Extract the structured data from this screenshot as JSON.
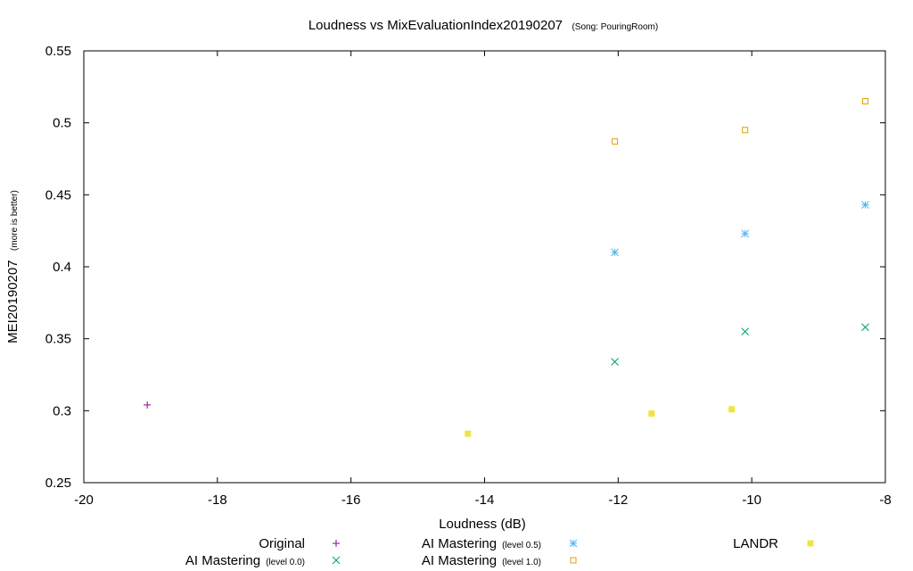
{
  "chart_data": {
    "type": "scatter",
    "title": "Loudness vs MixEvaluationIndex20190207",
    "subtitle": "(Song: PouringRoom)",
    "xlabel": "Loudness (dB)",
    "ylabel": "MEI20190207",
    "ylabel_note": "(more is better)",
    "xlim": [
      -20,
      -8
    ],
    "ylim": [
      0.25,
      0.55
    ],
    "xticks": [
      -20,
      -18,
      -16,
      -14,
      -12,
      -10,
      -8
    ],
    "yticks": [
      0.25,
      0.3,
      0.35,
      0.4,
      0.45,
      0.5,
      0.55
    ],
    "grid": false,
    "legend_position": "bottom",
    "series": [
      {
        "name": "Original",
        "name_note": "",
        "marker": "plus",
        "color": "#94008c",
        "points": [
          {
            "x": -19.05,
            "y": 0.304
          }
        ]
      },
      {
        "name": "AI Mastering",
        "name_note": "(level 0.0)",
        "marker": "cross",
        "color": "#009e73",
        "points": [
          {
            "x": -12.05,
            "y": 0.334
          },
          {
            "x": -10.1,
            "y": 0.355
          },
          {
            "x": -8.3,
            "y": 0.358
          }
        ]
      },
      {
        "name": "AI Mastering",
        "name_note": "(level 0.5)",
        "marker": "star",
        "color": "#56b4e9",
        "points": [
          {
            "x": -12.05,
            "y": 0.41
          },
          {
            "x": -10.1,
            "y": 0.423
          },
          {
            "x": -8.3,
            "y": 0.443
          }
        ]
      },
      {
        "name": "AI Mastering",
        "name_note": "(level 1.0)",
        "marker": "open-square",
        "color": "#e69f00",
        "points": [
          {
            "x": -12.05,
            "y": 0.487
          },
          {
            "x": -10.1,
            "y": 0.495
          },
          {
            "x": -8.3,
            "y": 0.515
          }
        ]
      },
      {
        "name": "LANDR",
        "name_note": "",
        "marker": "filled-square",
        "color": "#f0e442",
        "points": [
          {
            "x": -14.25,
            "y": 0.284
          },
          {
            "x": -11.5,
            "y": 0.298
          },
          {
            "x": -10.3,
            "y": 0.301
          }
        ]
      }
    ]
  }
}
